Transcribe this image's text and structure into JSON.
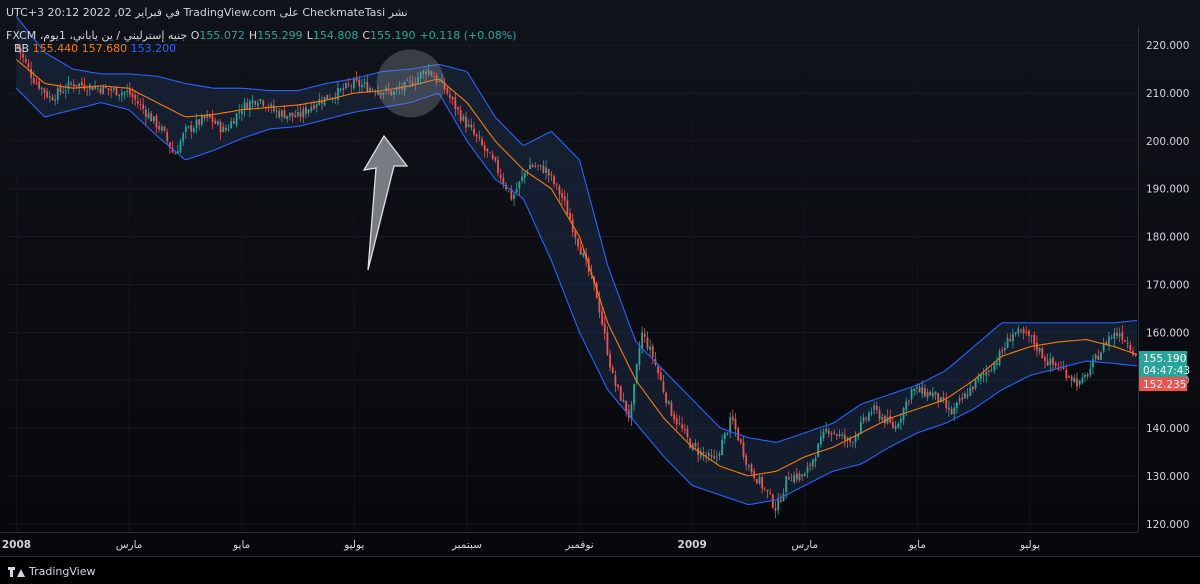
{
  "header": {
    "published": "نشر CheckmateTasi على TradingView.com في فبراير 02, 2022 20:12 UTC+3",
    "symbol": "جنيه إسترليني / ين ياباني، 1يوم، FXCM",
    "ohlc": [
      {
        "key": "O",
        "value": "155.072"
      },
      {
        "key": "H",
        "value": "155.299"
      },
      {
        "key": "L",
        "value": "154.808"
      },
      {
        "key": "C",
        "value": "155.190"
      },
      {
        "key": "",
        "value": "+0.118 (+0.08%)"
      }
    ],
    "bb_label": "BB",
    "bb_values": [
      "155.440",
      "157.680",
      "153.200"
    ]
  },
  "price_tags": {
    "last_price": "155.190",
    "countdown": "04:47:43",
    "lower": "152.235"
  },
  "footer": {
    "brand": "TradingView"
  },
  "colors": {
    "up": "#26a69a",
    "down": "#ef5350",
    "bb_basis": "#f57c00",
    "bb_band": "#2962ff",
    "bb_fill": "#1b2b45"
  },
  "chart_data": {
    "type": "candlestick",
    "y_axis_ticks": [
      "220.000",
      "210.000",
      "200.000",
      "190.000",
      "180.000",
      "170.000",
      "160.000",
      "150.000",
      "140.000",
      "130.000",
      "120.000"
    ],
    "ylim": [
      118.5,
      224
    ],
    "x_axis_ticks": [
      {
        "label": "2008",
        "x": 0
      },
      {
        "label": "مارس",
        "x": 2
      },
      {
        "label": "مايو",
        "x": 4
      },
      {
        "label": "يوليو",
        "x": 6
      },
      {
        "label": "سبتمبر",
        "x": 8
      },
      {
        "label": "نوفمبر",
        "x": 10
      },
      {
        "label": "2009",
        "x": 12
      },
      {
        "label": "مارس",
        "x": 14
      },
      {
        "label": "مايو",
        "x": 16
      },
      {
        "label": "يوليو",
        "x": 18
      }
    ],
    "xlim": [
      -0.15,
      19.9
    ],
    "bb_basis": [
      [
        0,
        217
      ],
      [
        0.5,
        212
      ],
      [
        1,
        211
      ],
      [
        1.5,
        211.5
      ],
      [
        2,
        211
      ],
      [
        2.5,
        208
      ],
      [
        3,
        205
      ],
      [
        3.5,
        205.5
      ],
      [
        4,
        206.5
      ],
      [
        4.5,
        207
      ],
      [
        5,
        207.5
      ],
      [
        5.5,
        208.5
      ],
      [
        6,
        210
      ],
      [
        6.5,
        210.5
      ],
      [
        7,
        211.5
      ],
      [
        7.5,
        213
      ],
      [
        8,
        208
      ],
      [
        8.5,
        200
      ],
      [
        9,
        194
      ],
      [
        9.5,
        190
      ],
      [
        10,
        180
      ],
      [
        10.5,
        162
      ],
      [
        11,
        150
      ],
      [
        11.5,
        142
      ],
      [
        12,
        136
      ],
      [
        12.5,
        132
      ],
      [
        13,
        130
      ],
      [
        13.5,
        131
      ],
      [
        14,
        134
      ],
      [
        14.5,
        136
      ],
      [
        15,
        139
      ],
      [
        15.5,
        142
      ],
      [
        16,
        144
      ],
      [
        16.5,
        146
      ],
      [
        17,
        150
      ],
      [
        17.5,
        155
      ],
      [
        18,
        157
      ],
      [
        18.5,
        158
      ],
      [
        19,
        158.5
      ],
      [
        19.5,
        157
      ],
      [
        19.9,
        155.4
      ]
    ],
    "bb_upper": [
      [
        0,
        226
      ],
      [
        0.5,
        218.5
      ],
      [
        1,
        215
      ],
      [
        1.5,
        214
      ],
      [
        2,
        214
      ],
      [
        2.5,
        213.5
      ],
      [
        3,
        212
      ],
      [
        3.5,
        211
      ],
      [
        4,
        211
      ],
      [
        4.5,
        210.5
      ],
      [
        5,
        210.5
      ],
      [
        5.5,
        212
      ],
      [
        6,
        213
      ],
      [
        6.5,
        214.5
      ],
      [
        7,
        215
      ],
      [
        7.5,
        216
      ],
      [
        8,
        214.5
      ],
      [
        8.5,
        205
      ],
      [
        9,
        199
      ],
      [
        9.5,
        202
      ],
      [
        10,
        196
      ],
      [
        10.5,
        174
      ],
      [
        11,
        158
      ],
      [
        11.5,
        152
      ],
      [
        12,
        146
      ],
      [
        12.5,
        140
      ],
      [
        13,
        138
      ],
      [
        13.5,
        137
      ],
      [
        14,
        139
      ],
      [
        14.5,
        141
      ],
      [
        15,
        145
      ],
      [
        15.5,
        147
      ],
      [
        16,
        149
      ],
      [
        16.5,
        152
      ],
      [
        17,
        157
      ],
      [
        17.5,
        162
      ],
      [
        18,
        162
      ],
      [
        18.5,
        162
      ],
      [
        19,
        162
      ],
      [
        19.5,
        162
      ],
      [
        19.9,
        162.5
      ]
    ],
    "bb_lower": [
      [
        0,
        211
      ],
      [
        0.5,
        205
      ],
      [
        1,
        206.5
      ],
      [
        1.5,
        208
      ],
      [
        2,
        206.5
      ],
      [
        2.5,
        201
      ],
      [
        3,
        196
      ],
      [
        3.5,
        198
      ],
      [
        4,
        200.5
      ],
      [
        4.5,
        202.5
      ],
      [
        5,
        203
      ],
      [
        5.5,
        204.5
      ],
      [
        6,
        206
      ],
      [
        6.5,
        207
      ],
      [
        7,
        208
      ],
      [
        7.5,
        210
      ],
      [
        8,
        200
      ],
      [
        8.5,
        192
      ],
      [
        9,
        188
      ],
      [
        9.5,
        175
      ],
      [
        10,
        160
      ],
      [
        10.5,
        148
      ],
      [
        11,
        141
      ],
      [
        11.5,
        134
      ],
      [
        12,
        128
      ],
      [
        12.5,
        126
      ],
      [
        13,
        124
      ],
      [
        13.5,
        125
      ],
      [
        14,
        128
      ],
      [
        14.5,
        131
      ],
      [
        15,
        132.5
      ],
      [
        15.5,
        136
      ],
      [
        16,
        139
      ],
      [
        16.5,
        141
      ],
      [
        17,
        144
      ],
      [
        17.5,
        148
      ],
      [
        18,
        151
      ],
      [
        18.5,
        152.5
      ],
      [
        19,
        154
      ],
      [
        19.5,
        153.5
      ],
      [
        19.9,
        153
      ]
    ],
    "price_path": [
      [
        0,
        220
      ],
      [
        0.3,
        213
      ],
      [
        0.6,
        209
      ],
      [
        1,
        212
      ],
      [
        1.5,
        211
      ],
      [
        2,
        210
      ],
      [
        2.3,
        206
      ],
      [
        2.6,
        202
      ],
      [
        2.8,
        197
      ],
      [
        3,
        202
      ],
      [
        3.4,
        205
      ],
      [
        3.7,
        202
      ],
      [
        4,
        207
      ],
      [
        4.3,
        209
      ],
      [
        4.6,
        206
      ],
      [
        5,
        205
      ],
      [
        5.3,
        208
      ],
      [
        5.7,
        210
      ],
      [
        6,
        212
      ],
      [
        6.3,
        211
      ],
      [
        6.7,
        210
      ],
      [
        7,
        212
      ],
      [
        7.3,
        215
      ],
      [
        7.6,
        211
      ],
      [
        7.9,
        205
      ],
      [
        8.2,
        200
      ],
      [
        8.5,
        195
      ],
      [
        8.8,
        188
      ],
      [
        9.1,
        195
      ],
      [
        9.4,
        194
      ],
      [
        9.7,
        188
      ],
      [
        10,
        178
      ],
      [
        10.3,
        168
      ],
      [
        10.6,
        150
      ],
      [
        10.9,
        142
      ],
      [
        11.1,
        160
      ],
      [
        11.3,
        155
      ],
      [
        11.6,
        144
      ],
      [
        12,
        136
      ],
      [
        12.4,
        133
      ],
      [
        12.7,
        142
      ],
      [
        13,
        132
      ],
      [
        13.3,
        127
      ],
      [
        13.5,
        123
      ],
      [
        13.7,
        130
      ],
      [
        14,
        130
      ],
      [
        14.4,
        140
      ],
      [
        14.8,
        137
      ],
      [
        15.2,
        144
      ],
      [
        15.6,
        140
      ],
      [
        15.9,
        148
      ],
      [
        16.3,
        147
      ],
      [
        16.6,
        143
      ],
      [
        17,
        149
      ],
      [
        17.4,
        154
      ],
      [
        17.7,
        160
      ],
      [
        18,
        159
      ],
      [
        18.3,
        154
      ],
      [
        18.6,
        152
      ],
      [
        18.9,
        149
      ],
      [
        19.1,
        153
      ],
      [
        19.4,
        159
      ],
      [
        19.6,
        160
      ],
      [
        19.9,
        155.2
      ]
    ],
    "highlight": {
      "x": 7,
      "y": 212
    }
  }
}
